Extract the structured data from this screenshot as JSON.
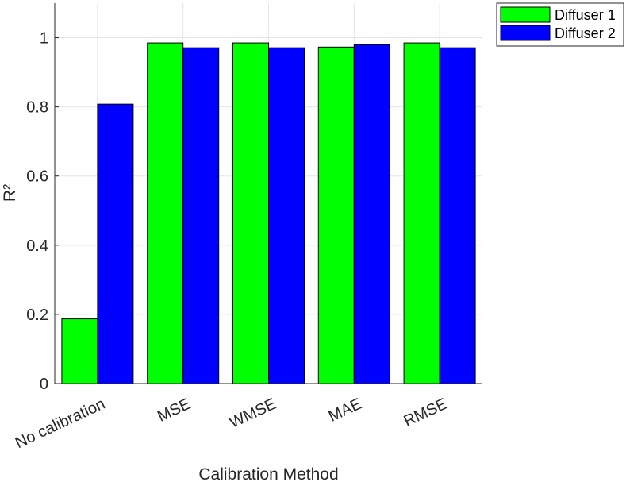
{
  "chart_data": {
    "type": "bar",
    "categories": [
      "No calibration",
      "MSE",
      "WMSE",
      "MAE",
      "RMSE"
    ],
    "series": [
      {
        "name": "Diffuser 1",
        "color": "#00ff00",
        "values": [
          0.187,
          0.985,
          0.985,
          0.973,
          0.985
        ]
      },
      {
        "name": "Diffuser 2",
        "color": "#0000ff",
        "values": [
          0.808,
          0.971,
          0.971,
          0.98,
          0.971
        ]
      }
    ],
    "xlabel": "Calibration Method",
    "ylabel": "R²",
    "ylim": [
      0,
      1.1
    ],
    "yticks": [
      0,
      0.2,
      0.4,
      0.6,
      0.8,
      1
    ],
    "ytick_labels": [
      "0",
      "0.2",
      "0.4",
      "0.6",
      "0.8",
      "1"
    ],
    "grid": true,
    "legend_position": "outside-top-right"
  }
}
